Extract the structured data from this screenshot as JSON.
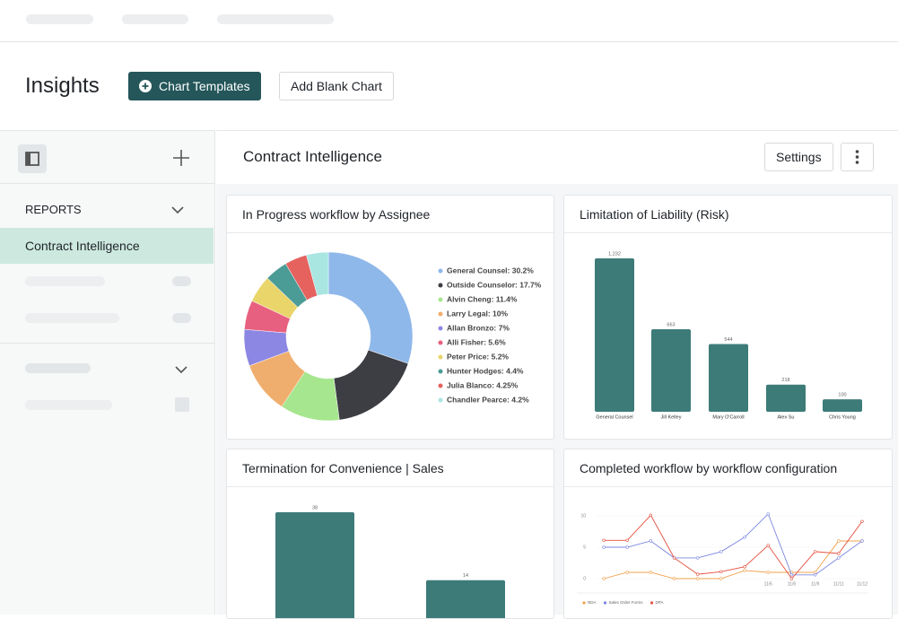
{
  "header": {
    "title": "Insights",
    "buttons": [
      "Chart Templates",
      "Add Blank Chart"
    ]
  },
  "sidebar": {
    "section": "REPORTS",
    "items": [
      "Contract Intelligence"
    ]
  },
  "report": {
    "title": "Contract Intelligence",
    "settings": "Settings"
  },
  "chart_data": [
    {
      "type": "donut",
      "title": "In Progress workflow by Assignee",
      "categories": [
        "General Counsel: 30.2%",
        "Outside Counselor: 17.7%",
        "Alvin Cheng: 11.4%",
        "Larry Legal: 10%",
        "Allan Bronzo: 7%",
        "Alli Fisher: 5.6%",
        "Peter Price: 5.2%",
        "Hunter Hodges: 4.4%",
        "Julia Blanco: 4.25%",
        "Chandler Pearce: 4.2%"
      ],
      "values": [
        30.2,
        17.7,
        11.4,
        10,
        7,
        5.6,
        5.2,
        4.4,
        4.25,
        4.2
      ],
      "colors": [
        "#8fb8ea",
        "#3d3e44",
        "#a6e68e",
        "#f0ae6e",
        "#8c87e3",
        "#e8607f",
        "#e9d56a",
        "#4b9b96",
        "#e5625f",
        "#a9e6e2"
      ]
    },
    {
      "type": "bar",
      "title": "Limitation of Liability (Risk)",
      "categories": [
        "General Counsel",
        "Jill Kelley",
        "Mary O'Carroll",
        "Alex Su",
        "Chris Young"
      ],
      "values": [
        1232,
        663,
        544,
        218,
        100
      ],
      "value_labels": [
        "1,232",
        "663",
        "544",
        "218",
        "100"
      ],
      "color": "#3d7b78"
    },
    {
      "type": "bar",
      "title": "Termination for Convenience | Sales",
      "values": [
        38,
        14
      ],
      "color": "#3d7b78"
    },
    {
      "type": "line",
      "title": "Completed workflow by workflow configuration",
      "categories": [
        null,
        null,
        null,
        null,
        null,
        null,
        null,
        "11/5",
        "11/6",
        "11/9",
        "11/11",
        "11/12"
      ],
      "ylim": [
        0,
        10
      ],
      "yticks": [
        0,
        5,
        10
      ],
      "series": [
        {
          "name": "NDA",
          "color": "#f0a04b",
          "values": [
            0,
            1,
            1,
            0,
            0,
            0,
            1.3,
            1,
            1,
            1,
            6,
            6
          ]
        },
        {
          "name": "Sales Order Forms",
          "color": "#7b86e0",
          "values": [
            5,
            5,
            6,
            3.3,
            3.3,
            4.3,
            6.6,
            10.3,
            0.6,
            0.6,
            3.3,
            6
          ]
        },
        {
          "name": "DPA",
          "color": "#e5503f",
          "values": [
            6.1,
            6.1,
            10.1,
            3.3,
            0.7,
            1.1,
            1.9,
            5.3,
            0,
            4.3,
            4,
            9.1
          ]
        }
      ]
    }
  ]
}
